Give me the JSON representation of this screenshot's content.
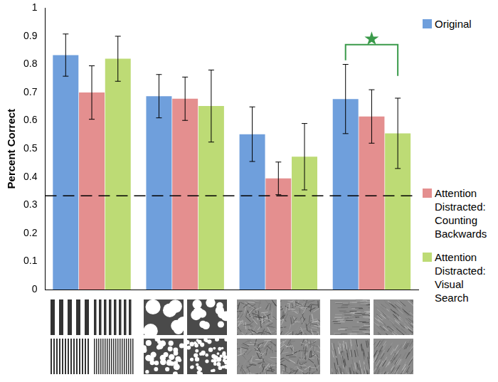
{
  "chart_data": {
    "type": "bar",
    "y_label": "Percent Correct",
    "categories": [
      null,
      null,
      null,
      null
    ],
    "series": [
      {
        "name": "Original",
        "color": "#6f9fdc",
        "values": [
          0.833,
          0.687,
          0.552,
          0.677
        ],
        "errors": [
          0.075,
          0.077,
          0.097,
          0.123
        ]
      },
      {
        "name": "Attention Distracted: Counting Backwards",
        "color": "#e48f8f",
        "values": [
          0.7,
          0.678,
          0.395,
          0.615
        ],
        "errors": [
          0.095,
          0.077,
          0.058,
          0.095
        ]
      },
      {
        "name": "Attention Distracted: Visual Search",
        "color": "#bddb75",
        "values": [
          0.82,
          0.652,
          0.472,
          0.555
        ],
        "errors": [
          0.08,
          0.128,
          0.118,
          0.125
        ]
      }
    ],
    "ylim": [
      0,
      1
    ],
    "yticks": [
      0,
      0.1,
      0.2,
      0.3,
      0.4,
      0.5,
      0.6,
      0.7,
      0.8,
      0.9,
      1
    ],
    "grid": false,
    "legend": "right",
    "tick_labels": "y",
    "chance_level": 0.333,
    "annotations": [
      {
        "text": "★",
        "category": 3,
        "from": "Original",
        "to": "Attention Distracted: Visual Search",
        "y": 0.87,
        "color": "#3a9a4a"
      }
    ]
  }
}
